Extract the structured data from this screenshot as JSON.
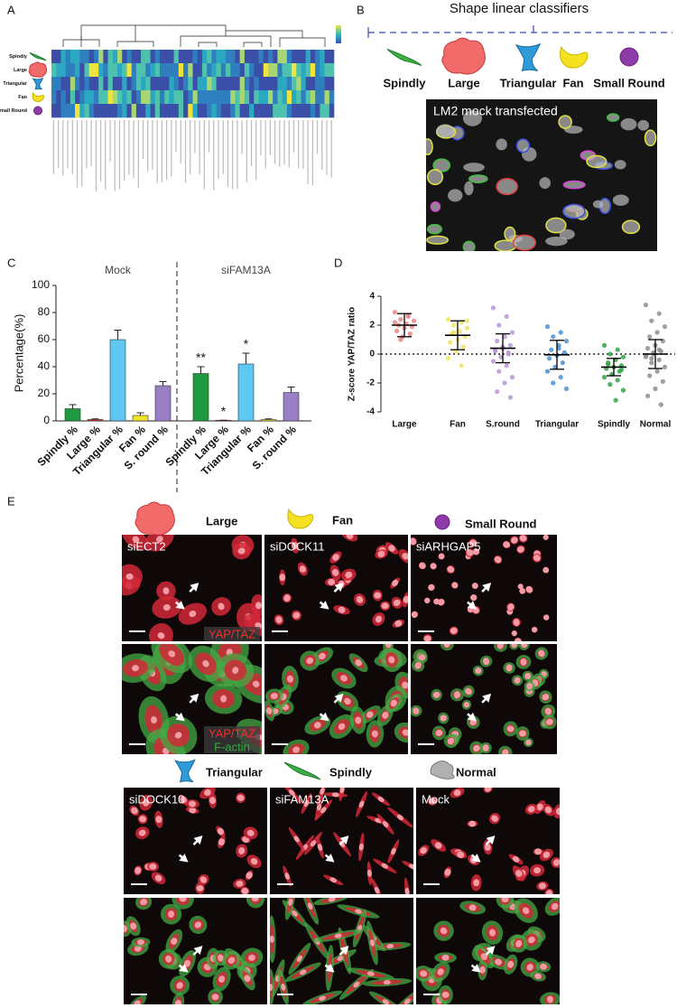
{
  "panels": {
    "a": "A",
    "b": "B",
    "c": "C",
    "d": "D",
    "e": "E"
  },
  "heatmap": {
    "row_labels": [
      "Spindly",
      "Large",
      "Triangular",
      "Fan",
      "Small Round"
    ]
  },
  "classifiers": {
    "title": "Shape linear classifiers",
    "shapes": [
      "Spindly",
      "Large",
      "Triangular",
      "Fan",
      "Small Round"
    ],
    "image_label": "LM2 mock transfected"
  },
  "chart_data": [
    {
      "type": "bar",
      "ylabel": "Percentage(%)",
      "groups": [
        "Mock",
        "siFAM13A"
      ],
      "categories": [
        "Spindly %",
        "Large %",
        "Triangular %",
        "Fan %",
        "S. round %",
        "Spindly %",
        "Large %",
        "Triangular %",
        "Fan %",
        "S. round %"
      ],
      "values": [
        9,
        1,
        60,
        4,
        26,
        35,
        0.5,
        42,
        1,
        21
      ],
      "errors": [
        3,
        0.5,
        7,
        2,
        3,
        5,
        0,
        8,
        0.5,
        4
      ],
      "colors": [
        "#1e9a40",
        "#e03030",
        "#5ec8f2",
        "#f2e42a",
        "#9a7fc4",
        "#1e9a40",
        "#e03030",
        "#5ec8f2",
        "#f2e42a",
        "#9a7fc4"
      ],
      "significance": [
        null,
        null,
        null,
        null,
        null,
        "**",
        "*",
        "*",
        null,
        null
      ],
      "ylim": [
        0,
        100
      ],
      "yticks": [
        0,
        20,
        40,
        60,
        80,
        100
      ]
    },
    {
      "type": "scatter",
      "ylabel": "Z-score YAP/TAZ ratio",
      "categories": [
        "Large",
        "Fan",
        "S.round",
        "Triangular",
        "Spindly",
        "Normal"
      ],
      "colors": [
        "#ec8484",
        "#f2e460",
        "#b894d6",
        "#4a92d6",
        "#2fa443",
        "#8e8e8e"
      ],
      "points": [
        [
          2.9,
          2.6,
          2.4,
          2.3,
          2.1,
          2.0,
          1.9,
          1.8,
          1.6,
          1.4,
          1.2,
          2.2,
          2.7,
          1.0
        ],
        [
          2.4,
          2.2,
          2.0,
          1.8,
          1.6,
          1.4,
          1.2,
          1.0,
          0.8,
          0.5,
          0.2,
          -0.3,
          -0.8,
          1.5,
          2.3
        ],
        [
          3.2,
          2.6,
          2.0,
          1.5,
          1.2,
          0.9,
          0.6,
          0.4,
          0.2,
          0,
          -0.2,
          -0.5,
          -0.8,
          -1.2,
          -1.6,
          -2.0,
          -2.6,
          -3.0,
          0.5,
          0.3,
          0.1
        ],
        [
          1.9,
          1.5,
          1.2,
          0.9,
          0.6,
          0.3,
          0.1,
          -0.1,
          -0.3,
          -0.6,
          -0.9,
          -1.2,
          -1.6,
          -2.0,
          -2.4,
          0.4
        ],
        [
          0.6,
          0.3,
          0,
          -0.2,
          -0.4,
          -0.6,
          -0.8,
          -0.9,
          -1.0,
          -1.2,
          -1.4,
          -1.6,
          -1.8,
          -2.1,
          -2.5,
          -3.2,
          -0.7,
          -1.1
        ],
        [
          3.4,
          2.8,
          2.3,
          1.9,
          1.5,
          1.2,
          0.9,
          0.6,
          0.4,
          0.2,
          0,
          -0.2,
          -0.4,
          -0.6,
          -0.9,
          -1.2,
          -1.5,
          -1.9,
          -2.4,
          -2.9,
          -3.5,
          0.1,
          -0.1,
          0.3,
          -0.3
        ]
      ],
      "means": [
        2.0,
        1.3,
        0.4,
        -0.05,
        -0.9,
        0.0
      ],
      "sd": [
        0.8,
        1.0,
        1.0,
        1.0,
        0.6,
        1.0
      ],
      "reference_line": 0,
      "ylim": [
        -4,
        4
      ],
      "yticks": [
        -4,
        -2,
        0,
        2,
        4
      ]
    }
  ],
  "panel_e": {
    "top": {
      "shapes": [
        "Large",
        "Fan",
        "Small Round"
      ],
      "conditions": [
        "siECT2",
        "siDOCK11",
        "siARHGAP5"
      ],
      "row1_stain": "YAP/TAZ",
      "row2_stains": [
        "YAP/TAZ",
        "F-actin"
      ]
    },
    "bottom": {
      "shapes": [
        "Triangular",
        "Spindly",
        "Normal"
      ],
      "conditions": [
        "siDOCK10",
        "siFAM13A",
        "Mock"
      ]
    }
  }
}
